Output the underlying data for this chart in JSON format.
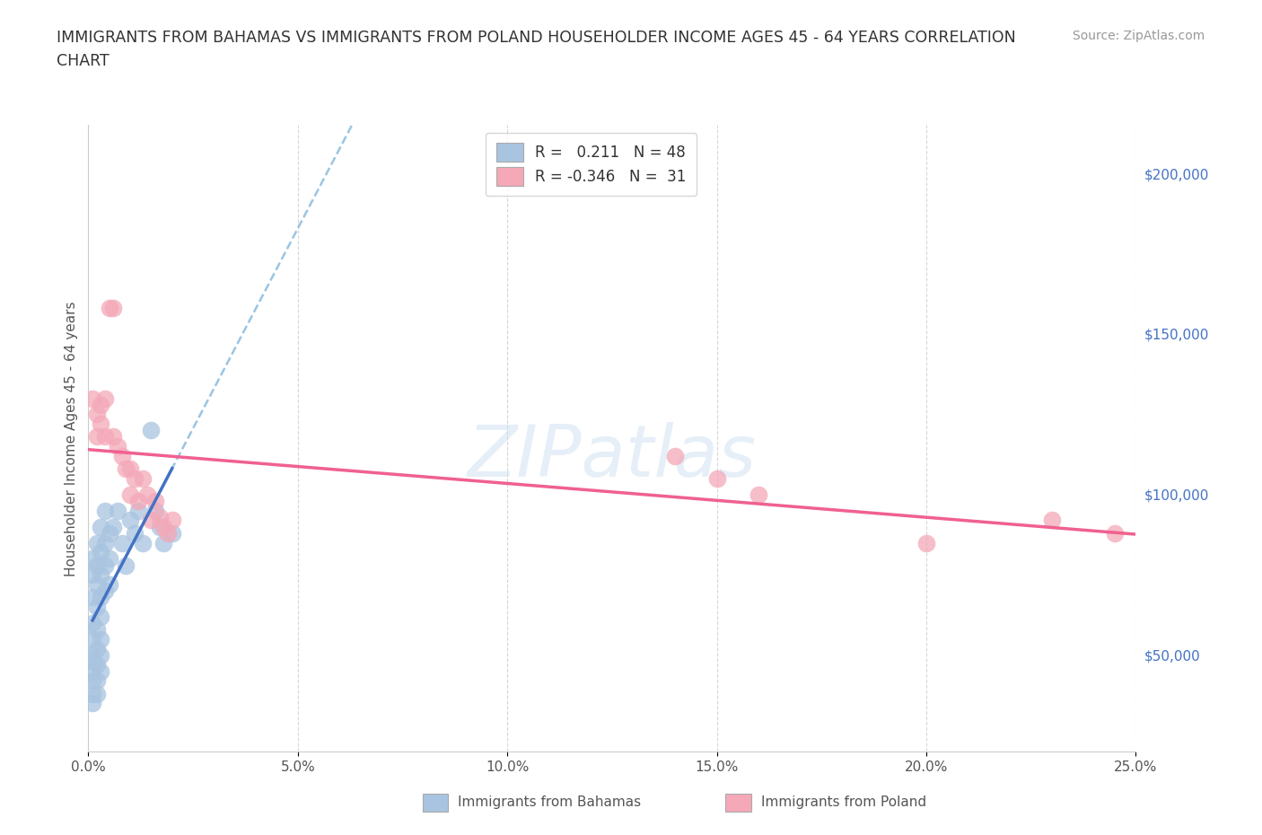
{
  "title": "IMMIGRANTS FROM BAHAMAS VS IMMIGRANTS FROM POLAND HOUSEHOLDER INCOME AGES 45 - 64 YEARS CORRELATION\nCHART",
  "source_text": "Source: ZipAtlas.com",
  "ylabel": "Householder Income Ages 45 - 64 years",
  "x_min": 0.0,
  "x_max": 0.25,
  "y_min": 20000,
  "y_max": 215000,
  "y_ticks": [
    50000,
    100000,
    150000,
    200000
  ],
  "y_tick_labels": [
    "$50,000",
    "$100,000",
    "$150,000",
    "$200,000"
  ],
  "x_tick_labels": [
    "0.0%",
    "5.0%",
    "10.0%",
    "15.0%",
    "20.0%",
    "25.0%"
  ],
  "x_ticks": [
    0.0,
    0.05,
    0.1,
    0.15,
    0.2,
    0.25
  ],
  "grid_color": "#cccccc",
  "background_color": "#ffffff",
  "bahamas_color": "#a8c4e0",
  "poland_color": "#f4a8b8",
  "bahamas_line_color": "#4472c4",
  "poland_line_color": "#f06090",
  "dashed_line_color": "#88bbdd",
  "r_bahamas": 0.211,
  "n_bahamas": 48,
  "r_poland": -0.346,
  "n_poland": 31,
  "bahamas_scatter": [
    [
      0.001,
      80000
    ],
    [
      0.001,
      75000
    ],
    [
      0.001,
      68000
    ],
    [
      0.001,
      60000
    ],
    [
      0.001,
      55000
    ],
    [
      0.001,
      50000
    ],
    [
      0.001,
      48000
    ],
    [
      0.001,
      45000
    ],
    [
      0.001,
      42000
    ],
    [
      0.001,
      38000
    ],
    [
      0.001,
      35000
    ],
    [
      0.002,
      85000
    ],
    [
      0.002,
      78000
    ],
    [
      0.002,
      72000
    ],
    [
      0.002,
      65000
    ],
    [
      0.002,
      58000
    ],
    [
      0.002,
      52000
    ],
    [
      0.002,
      47000
    ],
    [
      0.002,
      42000
    ],
    [
      0.002,
      38000
    ],
    [
      0.003,
      90000
    ],
    [
      0.003,
      82000
    ],
    [
      0.003,
      75000
    ],
    [
      0.003,
      68000
    ],
    [
      0.003,
      62000
    ],
    [
      0.003,
      55000
    ],
    [
      0.003,
      50000
    ],
    [
      0.003,
      45000
    ],
    [
      0.004,
      95000
    ],
    [
      0.004,
      85000
    ],
    [
      0.004,
      78000
    ],
    [
      0.004,
      70000
    ],
    [
      0.005,
      88000
    ],
    [
      0.005,
      80000
    ],
    [
      0.005,
      72000
    ],
    [
      0.006,
      90000
    ],
    [
      0.007,
      95000
    ],
    [
      0.008,
      85000
    ],
    [
      0.009,
      78000
    ],
    [
      0.01,
      92000
    ],
    [
      0.011,
      88000
    ],
    [
      0.012,
      95000
    ],
    [
      0.013,
      85000
    ],
    [
      0.015,
      120000
    ],
    [
      0.016,
      95000
    ],
    [
      0.017,
      90000
    ],
    [
      0.018,
      85000
    ],
    [
      0.02,
      88000
    ]
  ],
  "poland_scatter": [
    [
      0.001,
      130000
    ],
    [
      0.002,
      125000
    ],
    [
      0.002,
      118000
    ],
    [
      0.003,
      128000
    ],
    [
      0.003,
      122000
    ],
    [
      0.004,
      130000
    ],
    [
      0.004,
      118000
    ],
    [
      0.005,
      158000
    ],
    [
      0.006,
      158000
    ],
    [
      0.006,
      118000
    ],
    [
      0.007,
      115000
    ],
    [
      0.008,
      112000
    ],
    [
      0.009,
      108000
    ],
    [
      0.01,
      108000
    ],
    [
      0.01,
      100000
    ],
    [
      0.011,
      105000
    ],
    [
      0.012,
      98000
    ],
    [
      0.013,
      105000
    ],
    [
      0.014,
      100000
    ],
    [
      0.015,
      92000
    ],
    [
      0.016,
      98000
    ],
    [
      0.017,
      93000
    ],
    [
      0.018,
      90000
    ],
    [
      0.019,
      88000
    ],
    [
      0.02,
      92000
    ],
    [
      0.14,
      112000
    ],
    [
      0.15,
      105000
    ],
    [
      0.16,
      100000
    ],
    [
      0.2,
      85000
    ],
    [
      0.23,
      92000
    ],
    [
      0.245,
      88000
    ]
  ],
  "watermark_text": "ZIPatlas",
  "legend_label_bahamas": "Immigrants from Bahamas",
  "legend_label_poland": "Immigrants from Poland"
}
